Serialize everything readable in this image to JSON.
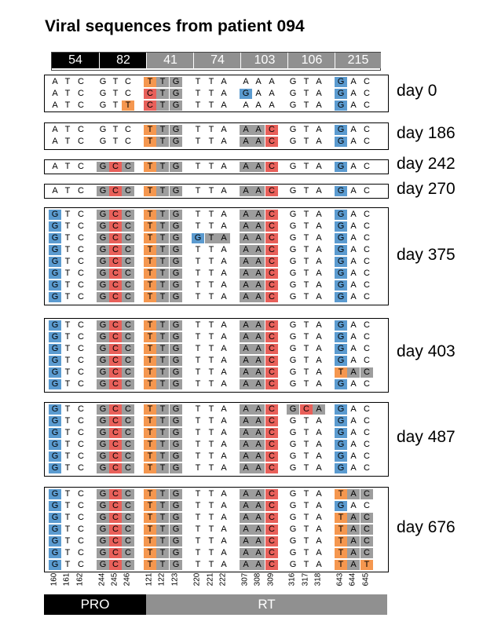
{
  "title": "Viral sequences from patient 094",
  "colors": {
    "orange": "#f5974f",
    "red": "#e8605a",
    "blue": "#5b9bd0",
    "gray": "#9d9d9d",
    "dark": "#000000",
    "header_gray": "#8f8f8f"
  },
  "codon_header": [
    {
      "label": "54",
      "color": "#000000"
    },
    {
      "label": "82",
      "color": "#000000"
    },
    {
      "label": "41",
      "color": "#909090"
    },
    {
      "label": "74",
      "color": "#909090"
    },
    {
      "label": "103",
      "color": "#909090"
    },
    {
      "label": "106",
      "color": "#909090"
    },
    {
      "label": "215",
      "color": "#909090"
    }
  ],
  "positions": [
    "160",
    "161",
    "162",
    "244",
    "245",
    "246",
    "121",
    "122",
    "123",
    "220",
    "221",
    "222",
    "307",
    "308",
    "309",
    "316",
    "317",
    "318",
    "643",
    "644",
    "645"
  ],
  "regions": [
    {
      "label": "PRO"
    },
    {
      "label": "RT"
    }
  ],
  "blocks": [
    {
      "day": "day 0",
      "rows": [
        {
          "seq": "ATCGTCTTGTTAAAAGTAGAC",
          "hl": {
            "6": "o",
            "7": "g",
            "8": "g",
            "18": "b"
          }
        },
        {
          "seq": "ATCGTCCTGTTAGAAGTAGAC",
          "hl": {
            "6": "r",
            "7": "g",
            "8": "g",
            "12": "b",
            "18": "b"
          }
        },
        {
          "seq": "ATCGTTCTGTTAAAAGTAGAC",
          "hl": {
            "5": "o",
            "6": "r",
            "7": "g",
            "8": "g",
            "18": "b"
          }
        }
      ]
    },
    {
      "day": "day 186",
      "rows": [
        {
          "seq": "ATCGTCTTGTTAAACGTAGAC",
          "hl": {
            "6": "o",
            "7": "g",
            "8": "g",
            "12": "g",
            "13": "g",
            "14": "r",
            "18": "b"
          }
        },
        {
          "seq": "ATCGTCTTGTTAAACGTAGAC",
          "hl": {
            "6": "o",
            "7": "g",
            "8": "g",
            "12": "g",
            "13": "g",
            "14": "r",
            "18": "b"
          }
        }
      ]
    },
    {
      "day": "day 242",
      "rows": [
        {
          "seq": "ATCGCCTTGTTAAACGTAGAC",
          "hl": {
            "3": "g",
            "4": "r",
            "5": "g",
            "6": "o",
            "7": "g",
            "8": "g",
            "12": "g",
            "13": "g",
            "14": "r",
            "18": "b"
          }
        }
      ]
    },
    {
      "day": "day 270",
      "rows": [
        {
          "seq": "ATCGCCTTGTTAAACGTAGAC",
          "hl": {
            "3": "g",
            "4": "r",
            "5": "g",
            "6": "o",
            "7": "g",
            "8": "g",
            "12": "g",
            "13": "g",
            "14": "r",
            "18": "b"
          }
        }
      ]
    },
    {
      "day": "day 375",
      "rows": [
        {
          "seq": "GTCGCCTTGTTAAACGTAGAC",
          "std": true
        },
        {
          "seq": "GTCGCCTTGTTAAACGTAGAC",
          "std": true
        },
        {
          "seq": "GTCGCCTTGGTAAACGTAGAC",
          "std": true,
          "extra": {
            "9": "b",
            "10": "g",
            "11": "g"
          }
        },
        {
          "seq": "GTCGCCTTGTTAAACGTAGAC",
          "std": true
        },
        {
          "seq": "GTCGCCTTGTTAAACGTAGAC",
          "std": true
        },
        {
          "seq": "GTCGCCTTGTTAAACGTAGAC",
          "std": true
        },
        {
          "seq": "GTCGCCTTGTTAAACGTAGAC",
          "std": true
        },
        {
          "seq": "GTCGCCTTGTTAAACGTAGAC",
          "std": true
        }
      ]
    },
    {
      "day": "day 403",
      "rows": [
        {
          "seq": "GTCGCCTTGTTAAACGTAGAC",
          "std": true
        },
        {
          "seq": "GTCGCCTTGTTAAACGTAGAC",
          "std": true
        },
        {
          "seq": "GTCGCCTTGTTAAACGTAGAC",
          "std": true
        },
        {
          "seq": "GTCGCCTTGTTAAACGTAGAC",
          "std": true
        },
        {
          "seq": "GTCGCCTTGTTAAACGTATAC",
          "std": true,
          "extra": {
            "18": "o",
            "19": "g",
            "20": "g"
          }
        },
        {
          "seq": "GTCGCCTTGTTAAACGTAGAC",
          "std": true
        }
      ]
    },
    {
      "day": "day 487",
      "rows": [
        {
          "seq": "GTCGCCTTGTTAAACGCAGAC",
          "std": true,
          "extra": {
            "15": "g",
            "16": "r",
            "17": "g"
          }
        },
        {
          "seq": "GTCGCCTTGTTAAACGTAGAC",
          "std": true
        },
        {
          "seq": "GTCGCCTTGTTAAACGTAGAC",
          "std": true
        },
        {
          "seq": "GTCGCCTTGTTAAACGTAGAC",
          "std": true
        },
        {
          "seq": "GTCGCCTTGTTAAACGTAGAC",
          "std": true
        },
        {
          "seq": "GTCGCCTTGTTAAACGTAGAC",
          "std": true
        }
      ]
    },
    {
      "day": "day 676",
      "rows": [
        {
          "seq": "GTCGCCTTGTTAAACGTATAC",
          "std": true,
          "extra": {
            "18": "o",
            "19": "g",
            "20": "g"
          }
        },
        {
          "seq": "GTCGCCTTGTTAAACGTAGAC",
          "std": true
        },
        {
          "seq": "GTCGCCTTGTTAAACGTATAC",
          "std": true,
          "extra": {
            "18": "o",
            "19": "g",
            "20": "g"
          }
        },
        {
          "seq": "GTCGCCTTGTTAAACGTATAC",
          "std": true,
          "extra": {
            "18": "o",
            "19": "g",
            "20": "g"
          }
        },
        {
          "seq": "GTCGCCTTGTTAAACGTATAC",
          "std": true,
          "extra": {
            "18": "o",
            "19": "g",
            "20": "g"
          }
        },
        {
          "seq": "GTCGCCTTGTTAAACGTATAC",
          "std": true,
          "extra": {
            "18": "o",
            "19": "g",
            "20": "g"
          }
        },
        {
          "seq": "GTCGCCTTGTTAAACGTATAT",
          "std": true,
          "extra": {
            "18": "o",
            "19": "g",
            "20": "o"
          }
        }
      ]
    }
  ]
}
